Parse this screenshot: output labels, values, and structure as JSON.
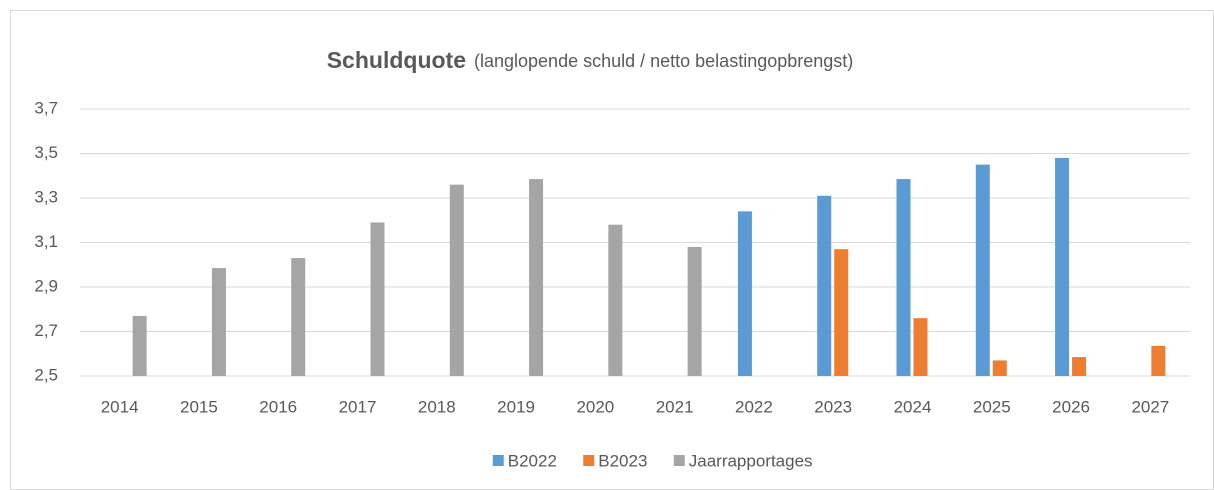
{
  "chart_data": {
    "type": "bar",
    "title": "Schuldquote",
    "subtitle": "(langlopende schuld / netto belastingopbrengst)",
    "categories": [
      "2014",
      "2015",
      "2016",
      "2017",
      "2018",
      "2019",
      "2020",
      "2021",
      "2022",
      "2023",
      "2024",
      "2025",
      "2026",
      "2027"
    ],
    "series": [
      {
        "name": "B2022",
        "color": "#5b9bd5",
        "values": [
          null,
          null,
          null,
          null,
          null,
          null,
          null,
          null,
          3.24,
          3.31,
          3.385,
          3.45,
          3.48,
          null
        ]
      },
      {
        "name": "B2023",
        "color": "#ed7d31",
        "values": [
          null,
          null,
          null,
          null,
          null,
          null,
          null,
          null,
          null,
          3.07,
          2.76,
          2.57,
          2.585,
          2.635
        ]
      },
      {
        "name": "Jaarrapportages",
        "color": "#a5a5a5",
        "values": [
          2.77,
          2.985,
          3.03,
          3.19,
          3.36,
          3.385,
          3.18,
          3.08,
          null,
          null,
          null,
          null,
          null,
          null
        ]
      }
    ],
    "ylim": [
      2.5,
      3.7
    ],
    "yticks": [
      {
        "value": 2.5,
        "label": "2,5"
      },
      {
        "value": 2.7,
        "label": "2,7"
      },
      {
        "value": 2.9,
        "label": "2,9"
      },
      {
        "value": 3.1,
        "label": "3,1"
      },
      {
        "value": 3.3,
        "label": "3,3"
      },
      {
        "value": 3.5,
        "label": "3,5"
      },
      {
        "value": 3.7,
        "label": "3,7"
      }
    ],
    "grid": true,
    "legend": "bottom"
  }
}
